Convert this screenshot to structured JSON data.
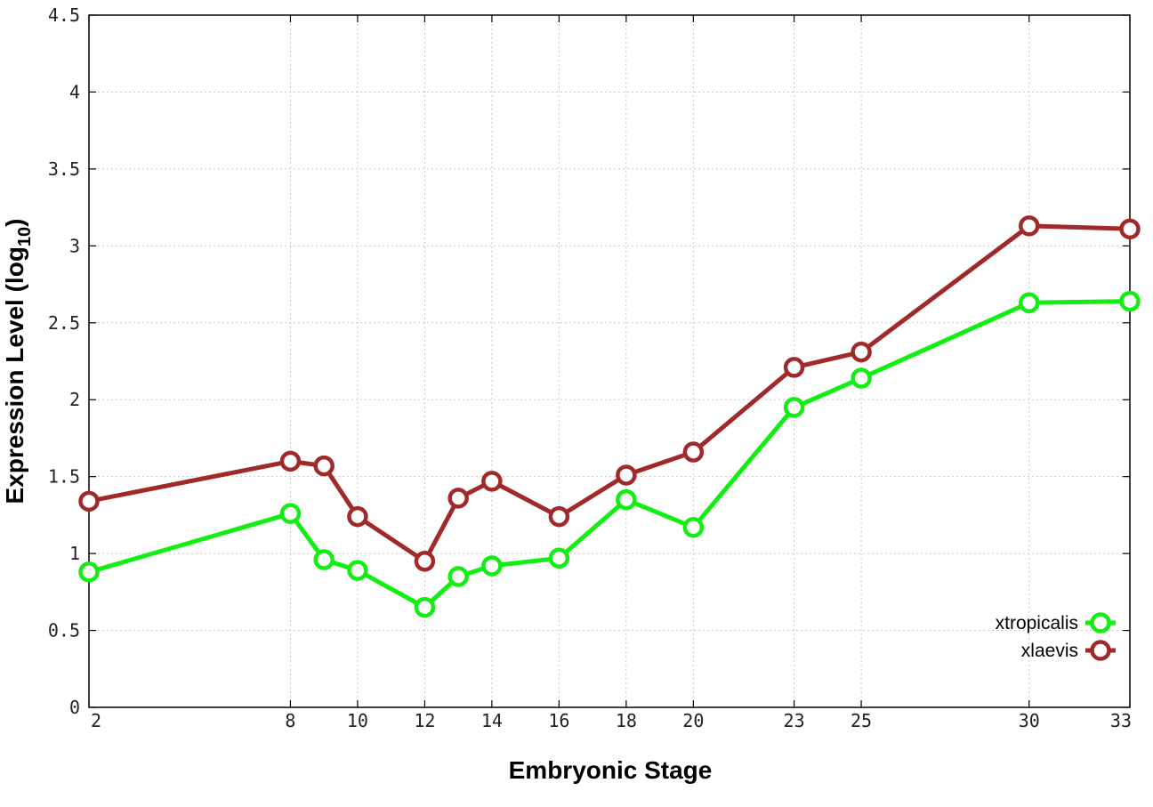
{
  "chart_data": {
    "type": "line",
    "xlabel": "Embryonic Stage",
    "ylabel_main": "Expression Level (log",
    "ylabel_sub": "10",
    "ylabel_close": ")",
    "x_ticks": [
      2,
      8,
      10,
      12,
      14,
      16,
      18,
      20,
      23,
      25,
      30,
      33
    ],
    "y_ticks": [
      "0",
      "0.5",
      "1",
      "1.5",
      "2",
      "2.5",
      "3",
      "3.5",
      "4",
      "4.5"
    ],
    "xlim": [
      2,
      33
    ],
    "ylim": [
      0,
      4.5
    ],
    "grid": true,
    "legend_position": "bottom-right",
    "series": [
      {
        "name": "xtropicalis",
        "color": "#11ee11",
        "x": [
          2,
          8,
          9,
          10,
          12,
          13,
          14,
          16,
          18,
          20,
          23,
          25,
          30,
          33
        ],
        "y": [
          0.88,
          1.26,
          0.96,
          0.89,
          0.65,
          0.85,
          0.92,
          0.97,
          1.35,
          1.17,
          1.95,
          2.14,
          2.63,
          2.64
        ]
      },
      {
        "name": "xlaevis",
        "color": "#a0292a",
        "x": [
          2,
          8,
          9,
          10,
          12,
          13,
          14,
          16,
          18,
          20,
          23,
          25,
          30,
          33
        ],
        "y": [
          1.34,
          1.6,
          1.57,
          1.24,
          0.95,
          1.36,
          1.47,
          1.24,
          1.51,
          1.66,
          2.21,
          2.31,
          3.13,
          3.11
        ]
      }
    ]
  }
}
